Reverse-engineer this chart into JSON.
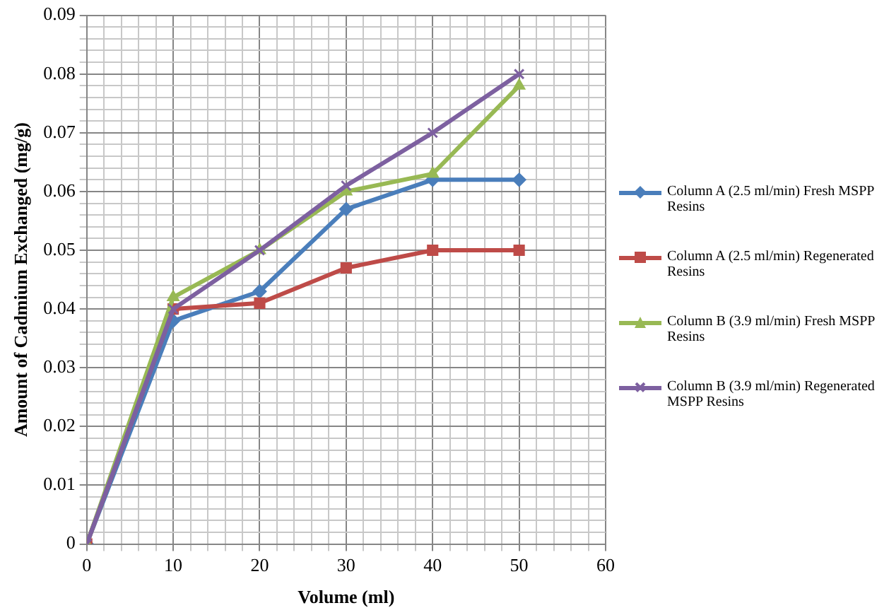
{
  "chart_data": {
    "type": "line",
    "xlabel": "Volume (ml)",
    "ylabel": "Amount of Cadmium Exchanged (mg/g)",
    "x": [
      0,
      10,
      20,
      30,
      40,
      50
    ],
    "series": [
      {
        "name": "Column A (2.5 ml/min) Fresh MSPP Resins",
        "color": "#4a7ebb",
        "marker": "diamond",
        "values": [
          0,
          0.038,
          0.043,
          0.057,
          0.062,
          0.062
        ]
      },
      {
        "name": "Column A (2.5 ml/min) Regenerated Resins",
        "color": "#be4b48",
        "marker": "square",
        "values": [
          0,
          0.04,
          0.041,
          0.047,
          0.05,
          0.05
        ]
      },
      {
        "name": "Column B (3.9 ml/min) Fresh MSPP Resins",
        "color": "#98b954",
        "marker": "triangle",
        "values": [
          0,
          0.042,
          0.05,
          0.06,
          0.063,
          0.078
        ]
      },
      {
        "name": "Column B (3.9 ml/min) Regenerated MSPP Resins",
        "color": "#7d60a0",
        "marker": "cross",
        "values": [
          0,
          0.04,
          0.05,
          0.061,
          0.07,
          0.08
        ]
      }
    ],
    "xlim": [
      0,
      60
    ],
    "xticks": [
      0,
      {
        "value": 2,
        "label": null
      },
      {
        "value": 4,
        "label": null
      },
      {
        "value": 6,
        "label": null
      },
      {
        "value": 8,
        "label": null
      },
      10,
      {
        "value": 12,
        "label": null
      },
      {
        "value": 14,
        "label": null
      },
      {
        "value": 16,
        "label": null
      },
      {
        "value": 18,
        "label": null
      },
      20,
      {
        "value": 22,
        "label": null
      },
      {
        "value": 24,
        "label": null
      },
      {
        "value": 26,
        "label": null
      },
      {
        "value": 28,
        "label": null
      },
      30,
      {
        "value": 32,
        "label": null
      },
      {
        "value": 34,
        "label": null
      },
      {
        "value": 36,
        "label": null
      },
      {
        "value": 38,
        "label": null
      },
      40,
      {
        "value": 42,
        "label": null
      },
      {
        "value": 44,
        "label": null
      },
      {
        "value": 46,
        "label": null
      },
      {
        "value": 48,
        "label": null
      },
      50,
      {
        "value": 52,
        "label": null
      },
      {
        "value": 54,
        "label": null
      },
      {
        "value": 56,
        "label": null
      },
      {
        "value": 58,
        "label": null
      },
      60
    ],
    "ylim": [
      0,
      0.09
    ],
    "yticks": [
      0,
      {
        "value": 0.002,
        "label": null
      },
      {
        "value": 0.004,
        "label": null
      },
      {
        "value": 0.006,
        "label": null
      },
      {
        "value": 0.008,
        "label": null
      },
      0.01,
      {
        "value": 0.012,
        "label": null
      },
      {
        "value": 0.014,
        "label": null
      },
      {
        "value": 0.016,
        "label": null
      },
      {
        "value": 0.018,
        "label": null
      },
      0.02,
      {
        "value": 0.022,
        "label": null
      },
      {
        "value": 0.024,
        "label": null
      },
      {
        "value": 0.026,
        "label": null
      },
      {
        "value": 0.028,
        "label": null
      },
      0.03,
      {
        "value": 0.032,
        "label": null
      },
      {
        "value": 0.034,
        "label": null
      },
      {
        "value": 0.036,
        "label": null
      },
      {
        "value": 0.038,
        "label": null
      },
      0.04,
      {
        "value": 0.042,
        "label": null
      },
      {
        "value": 0.044,
        "label": null
      },
      {
        "value": 0.046,
        "label": null
      },
      {
        "value": 0.048,
        "label": null
      },
      0.05,
      {
        "value": 0.052,
        "label": null
      },
      {
        "value": 0.054,
        "label": null
      },
      {
        "value": 0.056,
        "label": null
      },
      {
        "value": 0.058,
        "label": null
      },
      0.06,
      {
        "value": 0.062,
        "label": null
      },
      {
        "value": 0.064,
        "label": null
      },
      {
        "value": 0.066,
        "label": null
      },
      {
        "value": 0.068,
        "label": null
      },
      0.07,
      {
        "value": 0.072,
        "label": null
      },
      {
        "value": 0.074,
        "label": null
      },
      {
        "value": 0.076,
        "label": null
      },
      {
        "value": 0.078,
        "label": null
      },
      0.08,
      {
        "value": 0.082,
        "label": null
      },
      {
        "value": 0.084,
        "label": null
      },
      {
        "value": 0.086,
        "label": null
      },
      {
        "value": 0.088,
        "label": null
      },
      0.09
    ],
    "grid": true,
    "legend": "right",
    "line_style": "solid"
  }
}
